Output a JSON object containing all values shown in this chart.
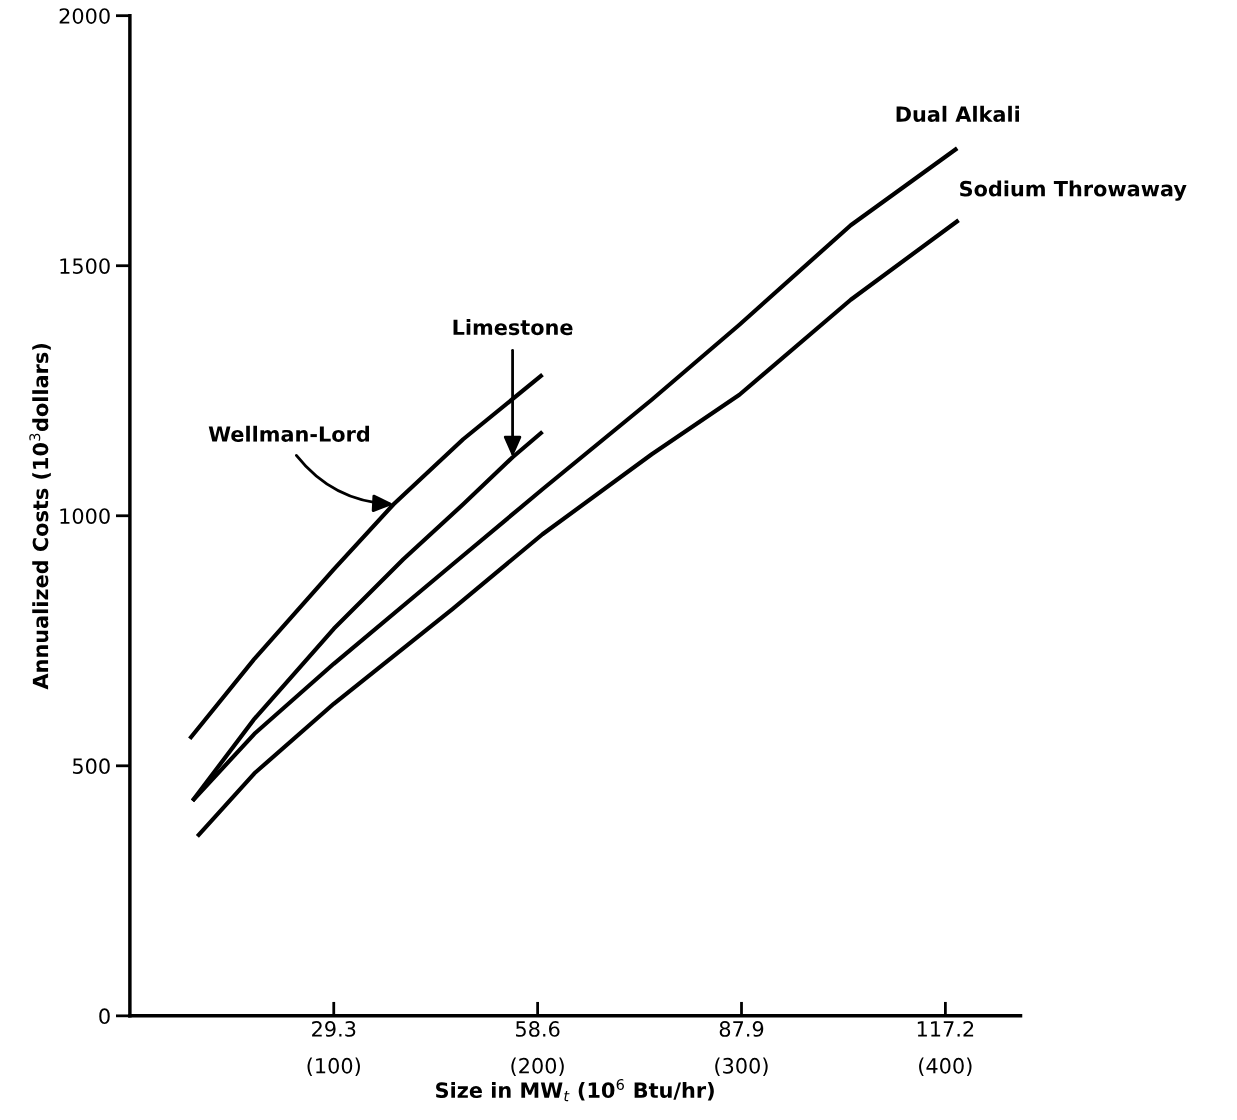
{
  "chart_data": {
    "type": "line",
    "xlabel": "Size in MW$_{t}$ (10$^{6}$ Btu/hr)",
    "ylabel": "Annualized Costs (10$^{3}$dollars)",
    "xlim": [
      0,
      128
    ],
    "ylim": [
      0,
      2000
    ],
    "xticks": [
      29.3,
      58.6,
      87.9,
      117.2
    ],
    "x2lim": [
      0,
      436.9
    ],
    "x2ticks": [
      {
        "value": 100,
        "label": "(100)"
      },
      {
        "value": 200,
        "label": "(200)"
      },
      {
        "value": 300,
        "label": "(300)"
      },
      {
        "value": 400,
        "label": "(400)"
      }
    ],
    "yticks": [
      0,
      500,
      1000,
      1500,
      2000
    ],
    "grid": false,
    "legend": false,
    "marker": "none",
    "line_style": "solid",
    "series": [
      {
        "name": "Wellman-Lord",
        "color": "#000000",
        "x": [
          8.6,
          17.9,
          29.3,
          37.9,
          47.9,
          59.3
        ],
        "values": [
          554,
          714,
          893,
          1023,
          1153,
          1282
        ]
      },
      {
        "name": "Limestone",
        "color": "#000000",
        "x": [
          9.0,
          17.9,
          29.3,
          39.3,
          47.9,
          55.0,
          59.3
        ],
        "values": [
          430,
          594,
          774,
          913,
          1023,
          1117,
          1168
        ]
      },
      {
        "name": "Dual Alkali",
        "color": "#000000",
        "x": [
          9.0,
          17.9,
          29.3,
          46.4,
          59.3,
          75.0,
          87.6,
          103.6,
          118.9
        ],
        "values": [
          430,
          564,
          704,
          903,
          1053,
          1232,
          1382,
          1581,
          1735
        ]
      },
      {
        "name": "Sodium Throwaway",
        "color": "#000000",
        "x": [
          9.7,
          17.9,
          29.3,
          46.4,
          59.3,
          75.0,
          87.6,
          103.6,
          119.1
        ],
        "values": [
          359,
          485,
          624,
          814,
          963,
          1123,
          1242,
          1432,
          1591
        ]
      }
    ]
  }
}
